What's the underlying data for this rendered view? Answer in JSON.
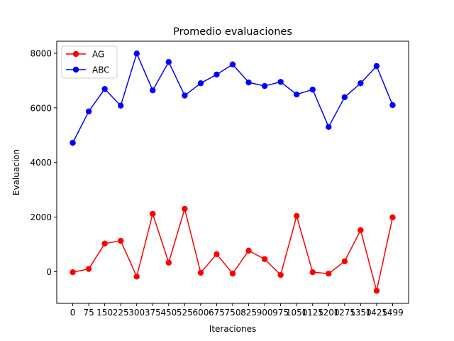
{
  "chart_data": {
    "type": "line",
    "title": "Promedio evaluaciones",
    "xlabel": "Iteraciones",
    "ylabel": "Evaluacion",
    "x": [
      0,
      75,
      150,
      225,
      300,
      375,
      450,
      525,
      600,
      675,
      750,
      825,
      900,
      975,
      1050,
      1125,
      1200,
      1275,
      1350,
      1425,
      1499
    ],
    "xticks": [
      "0",
      "75",
      "150",
      "225",
      "300",
      "375",
      "450",
      "525",
      "600",
      "675",
      "750",
      "825",
      "900",
      "975",
      "1050",
      "1125",
      "1200",
      "1275",
      "1350",
      "1425",
      "1499"
    ],
    "yticks": [
      0,
      2000,
      4000,
      6000,
      8000
    ],
    "ylim": [
      -1160,
      8440
    ],
    "grid": false,
    "legend_position": "top-left",
    "series": [
      {
        "name": "AG",
        "color": "#ff0000",
        "marker": "circle",
        "values": [
          -20,
          100,
          1030,
          1130,
          -180,
          2120,
          330,
          2300,
          -40,
          640,
          -70,
          770,
          460,
          -120,
          2040,
          -20,
          -70,
          380,
          1520,
          -700,
          1990
        ]
      },
      {
        "name": "ABC",
        "color": "#0000ff",
        "marker": "circle",
        "values": [
          4720,
          5870,
          6690,
          6080,
          7990,
          6640,
          7680,
          6450,
          6900,
          7220,
          7590,
          6930,
          6800,
          6950,
          6490,
          6670,
          5300,
          6390,
          6900,
          7530,
          6100
        ]
      }
    ]
  }
}
